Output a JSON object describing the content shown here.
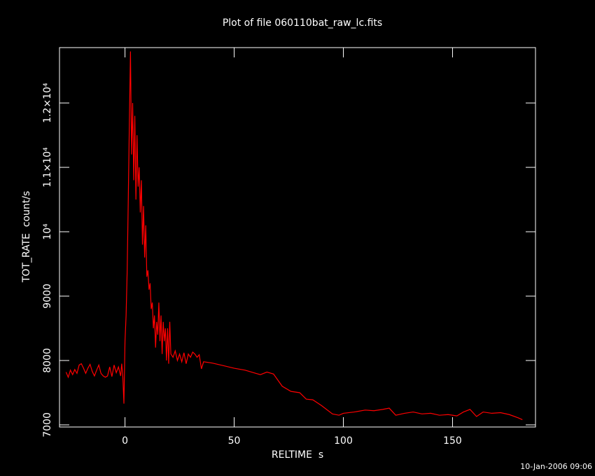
{
  "chart_data": {
    "type": "line",
    "title": "Plot of file 060110bat_raw_lc.fits",
    "x_label": "RELTIME  s",
    "y_label": "TOT_RATE  count/s",
    "timestamp": "10-Jan-2006 09:06",
    "color": "#ff0000",
    "xlim": [
      -30,
      188
    ],
    "xticks": [
      0,
      50,
      100,
      150
    ],
    "ylim": [
      6967,
      12860
    ],
    "yticks": [
      7000,
      8000,
      9000,
      {
        "value": 10000,
        "label": "10⁴"
      },
      {
        "value": 11000,
        "label": "1.1×10⁴"
      },
      {
        "value": 12000,
        "label": "1.2×10⁴"
      }
    ],
    "x": [
      -27,
      -26,
      -25,
      -24,
      -23,
      -22,
      -21,
      -20,
      -19,
      -18,
      -17,
      -16,
      -15,
      -14,
      -13,
      -12,
      -11,
      -10,
      -9,
      -8,
      -7,
      -6,
      -5,
      -4,
      -3,
      -2,
      -1.5,
      -1,
      -0.5,
      0,
      0.5,
      1,
      1.5,
      2,
      2.5,
      3,
      3.5,
      4,
      4.5,
      5,
      5.5,
      6,
      6.5,
      7,
      7.5,
      8,
      8.5,
      9,
      9.5,
      10,
      10.5,
      11,
      11.5,
      12,
      12.5,
      13,
      13.5,
      14,
      14.5,
      15,
      15.5,
      16,
      16.5,
      17,
      17.5,
      18,
      18.5,
      19,
      19.5,
      20,
      20.5,
      21,
      22,
      23,
      24,
      25,
      26,
      27,
      28,
      29,
      30,
      31,
      32,
      33,
      34,
      35,
      36,
      40,
      45,
      50,
      55,
      60,
      62,
      65,
      68,
      72,
      76,
      80,
      83,
      86,
      90,
      95,
      98,
      100,
      105,
      110,
      114,
      118,
      121,
      124,
      128,
      132,
      136,
      140,
      144,
      148,
      152,
      155,
      158,
      161,
      164,
      168,
      172,
      176,
      180,
      182
    ],
    "values": [
      7820,
      7740,
      7850,
      7780,
      7860,
      7800,
      7930,
      7950,
      7880,
      7800,
      7880,
      7940,
      7830,
      7760,
      7850,
      7930,
      7800,
      7760,
      7740,
      7760,
      7900,
      7750,
      7930,
      7810,
      7900,
      7760,
      7950,
      7750,
      7330,
      8300,
      8700,
      9400,
      10500,
      11700,
      12800,
      11200,
      12000,
      10800,
      11800,
      10500,
      11500,
      10700,
      11000,
      10300,
      10800,
      9800,
      10400,
      9600,
      10100,
      9300,
      9400,
      9100,
      9200,
      8800,
      8900,
      8500,
      8700,
      8200,
      8600,
      8400,
      8900,
      8300,
      8700,
      8100,
      8600,
      8300,
      8500,
      8000,
      8500,
      7950,
      8600,
      8100,
      8050,
      8150,
      8000,
      8100,
      7980,
      8120,
      7950,
      8100,
      8050,
      8130,
      8100,
      8050,
      8090,
      7870,
      7980,
      7960,
      7920,
      7880,
      7850,
      7800,
      7780,
      7820,
      7790,
      7600,
      7520,
      7500,
      7400,
      7390,
      7300,
      7170,
      7150,
      7180,
      7200,
      7230,
      7220,
      7240,
      7260,
      7150,
      7180,
      7200,
      7170,
      7180,
      7150,
      7160,
      7140,
      7200,
      7240,
      7130,
      7200,
      7180,
      7190,
      7160,
      7110,
      7080
    ]
  }
}
